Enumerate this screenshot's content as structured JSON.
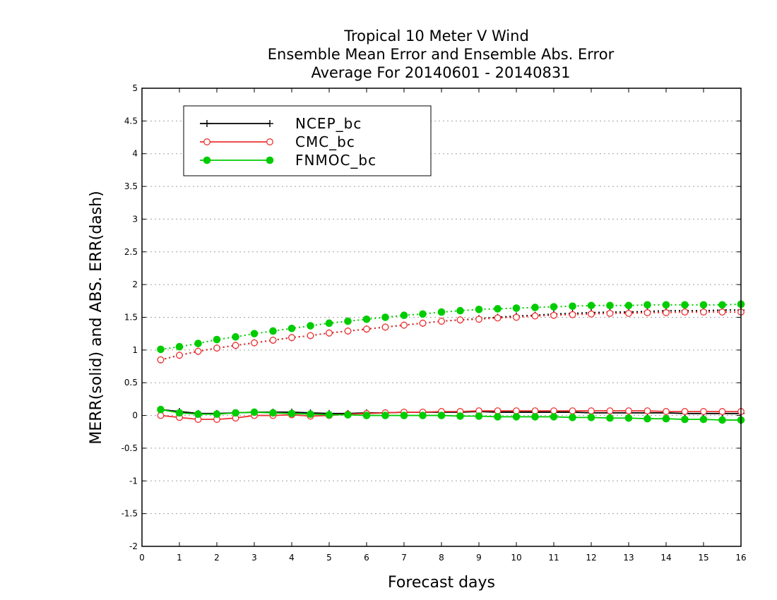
{
  "chart_data": {
    "type": "line",
    "title": [
      "Tropical 10 Meter V Wind",
      "Ensemble Mean Error and Ensemble Abs. Error",
      "Average For 20140601 - 20140831"
    ],
    "xlabel": "Forecast days",
    "ylabel": "MERR(solid) and ABS. ERR(dash)",
    "xlim": [
      0,
      16
    ],
    "ylim": [
      -2,
      5
    ],
    "xticks": [
      "0",
      "1",
      "2",
      "3",
      "4",
      "5",
      "6",
      "7",
      "8",
      "9",
      "10",
      "11",
      "12",
      "13",
      "14",
      "15",
      "16"
    ],
    "yticks": [
      "5",
      "4.5",
      "4",
      "3.5",
      "3",
      "2.5",
      "2",
      "1.5",
      "1",
      "0.5",
      "0",
      "-0.5",
      "-1",
      "-1.5",
      "-2"
    ],
    "grid": "horizontal dotted",
    "legend_position": "top-left",
    "x": [
      0.5,
      1,
      1.5,
      2,
      2.5,
      3,
      3.5,
      4,
      4.5,
      5,
      5.5,
      6,
      6.5,
      7,
      7.5,
      8,
      8.5,
      9,
      9.5,
      10,
      10.5,
      11,
      11.5,
      12,
      12.5,
      13,
      13.5,
      14,
      14.5,
      15,
      15.5,
      16
    ],
    "series": [
      {
        "name": "NCEP_bc",
        "color": "#000000",
        "marker": "plus",
        "merr": [
          0.09,
          0.06,
          0.03,
          0.03,
          0.04,
          0.05,
          0.05,
          0.05,
          0.04,
          0.03,
          0.03,
          0.04,
          0.04,
          0.05,
          0.05,
          0.05,
          0.05,
          0.06,
          0.05,
          0.05,
          0.05,
          0.05,
          0.05,
          0.04,
          0.04,
          0.04,
          0.04,
          0.04,
          0.03,
          0.03,
          0.03,
          0.03
        ],
        "abs_err": [
          0.85,
          0.92,
          0.98,
          1.03,
          1.07,
          1.11,
          1.15,
          1.19,
          1.22,
          1.26,
          1.29,
          1.32,
          1.35,
          1.38,
          1.41,
          1.44,
          1.46,
          1.48,
          1.5,
          1.52,
          1.53,
          1.55,
          1.56,
          1.57,
          1.58,
          1.58,
          1.59,
          1.6,
          1.6,
          1.6,
          1.61,
          1.61
        ]
      },
      {
        "name": "CMC_bc",
        "color": "#ee3333",
        "marker": "open-circle",
        "merr": [
          0.0,
          -0.03,
          -0.06,
          -0.06,
          -0.04,
          0.0,
          0.0,
          0.01,
          -0.01,
          0.0,
          0.02,
          0.03,
          0.04,
          0.05,
          0.05,
          0.06,
          0.06,
          0.07,
          0.07,
          0.07,
          0.07,
          0.07,
          0.07,
          0.07,
          0.07,
          0.07,
          0.07,
          0.06,
          0.06,
          0.06,
          0.06,
          0.06
        ],
        "abs_err": [
          0.85,
          0.92,
          0.98,
          1.03,
          1.07,
          1.11,
          1.15,
          1.19,
          1.22,
          1.26,
          1.29,
          1.32,
          1.35,
          1.38,
          1.41,
          1.44,
          1.46,
          1.47,
          1.49,
          1.5,
          1.52,
          1.53,
          1.54,
          1.55,
          1.56,
          1.56,
          1.57,
          1.57,
          1.58,
          1.58,
          1.58,
          1.58
        ]
      },
      {
        "name": "FNMOC_bc",
        "color": "#00cc00",
        "marker": "filled-circle",
        "merr": [
          0.09,
          0.04,
          0.02,
          0.02,
          0.04,
          0.05,
          0.04,
          0.03,
          0.02,
          0.01,
          0.01,
          0.0,
          0.0,
          0.0,
          0.0,
          0.0,
          -0.01,
          -0.01,
          -0.02,
          -0.02,
          -0.02,
          -0.02,
          -0.03,
          -0.03,
          -0.04,
          -0.04,
          -0.05,
          -0.05,
          -0.06,
          -0.06,
          -0.07,
          -0.07
        ],
        "abs_err": [
          1.01,
          1.05,
          1.1,
          1.16,
          1.2,
          1.25,
          1.29,
          1.33,
          1.37,
          1.41,
          1.44,
          1.47,
          1.5,
          1.53,
          1.55,
          1.58,
          1.6,
          1.62,
          1.63,
          1.64,
          1.65,
          1.66,
          1.67,
          1.68,
          1.68,
          1.68,
          1.69,
          1.69,
          1.69,
          1.69,
          1.69,
          1.7
        ]
      }
    ]
  }
}
